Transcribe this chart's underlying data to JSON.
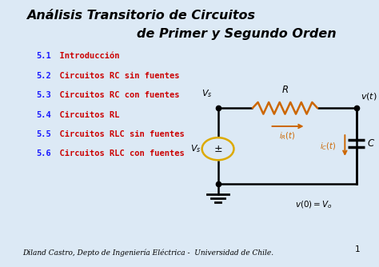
{
  "bg_color": "#dce9f5",
  "title_line1": "Análisis Transitorio de Circuitos",
  "title_line2": "de Primer y Segundo Orden",
  "title_color": "#000000",
  "title_fontsize": 11.5,
  "menu_items": [
    {
      "num": "5.1",
      "text": "  Introducción"
    },
    {
      "num": "5.2",
      "text": "  Circuitos RC sin fuentes"
    },
    {
      "num": "5.3",
      "text": "  Circuitos RC con fuentes"
    },
    {
      "num": "5.4",
      "text": "  Circuitos RL"
    },
    {
      "num": "5.5",
      "text": "  Circuitos RLC sin fuentes"
    },
    {
      "num": "5.6",
      "text": "  Circuitos RLC con fuentes"
    }
  ],
  "num_color": "#1a1aff",
  "text_color": "#cc0000",
  "menu_fontsize": 7.5,
  "footer": "Diland Castro, Depto de Ingeniería Eléctrica -  Universidad de Chile.",
  "footer_fontsize": 6.5,
  "page_num": "1",
  "circuit": {
    "TLx": 0.575,
    "TLy": 0.595,
    "TRx": 0.94,
    "TRy": 0.595,
    "BLx": 0.575,
    "BLy": 0.31,
    "BRx": 0.94,
    "BRy": 0.31,
    "wire_color": "#000000",
    "node_color": "#000000",
    "resistor_color": "#cc6600",
    "source_color": "#ddaa00",
    "arrow_color": "#cc6600"
  }
}
